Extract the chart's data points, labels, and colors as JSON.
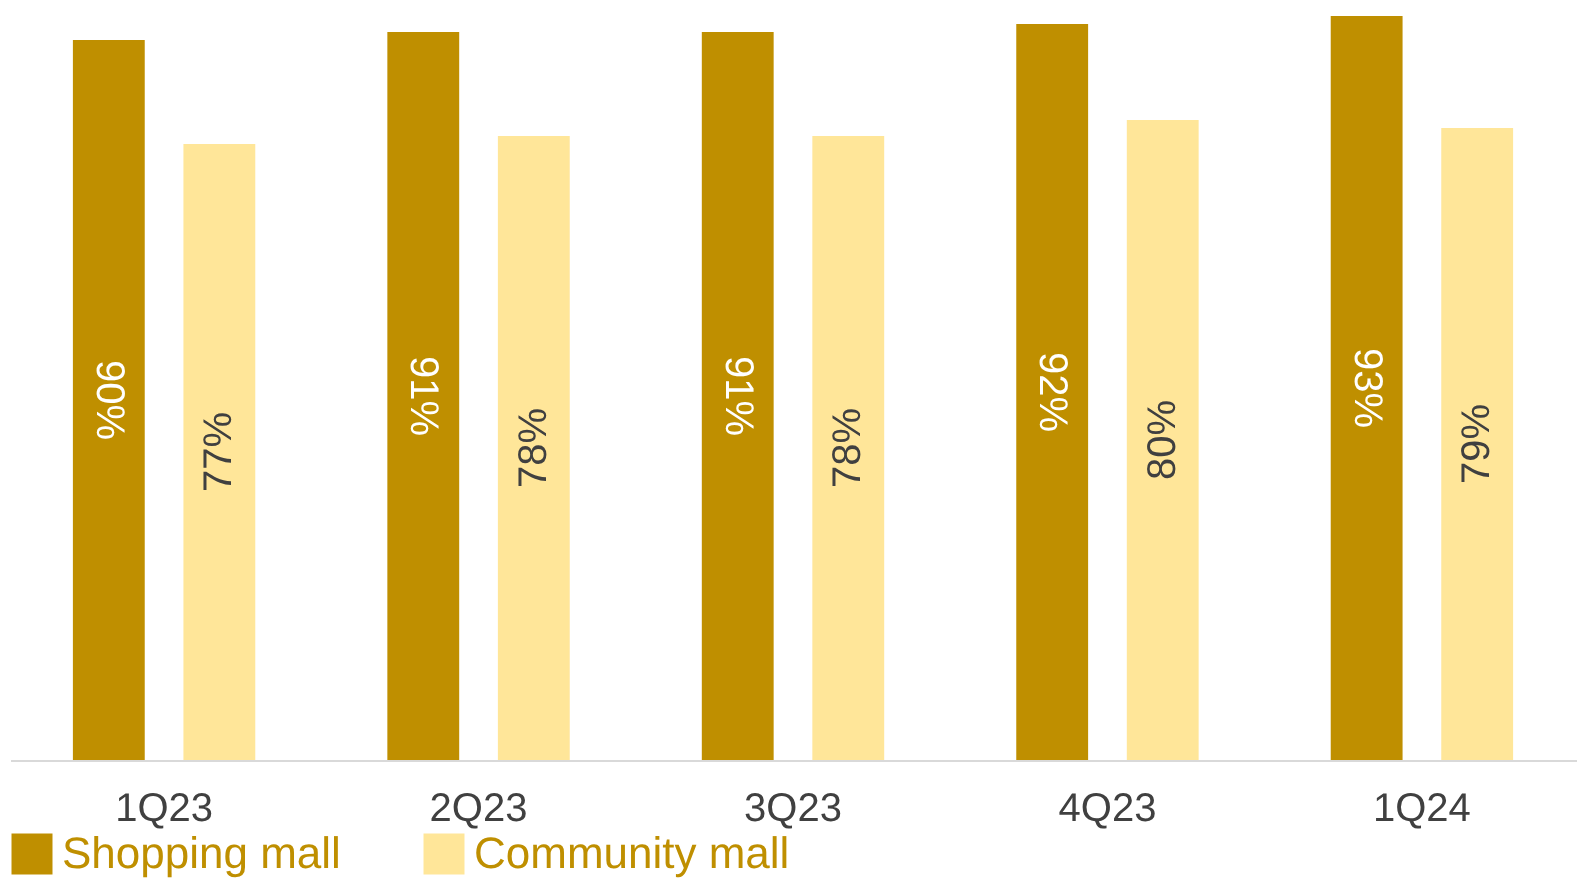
{
  "chart_data": {
    "type": "bar",
    "categories": [
      "1Q23",
      "2Q23",
      "3Q23",
      "4Q23",
      "1Q24"
    ],
    "series": [
      {
        "name": "Shopping mall",
        "color": "#bf8f00",
        "values": [
          90,
          91,
          91,
          92,
          93
        ],
        "value_labels": [
          "90%",
          "91%",
          "91%",
          "92%",
          "93%"
        ]
      },
      {
        "name": "Community mall",
        "color": "#ffe699",
        "values": [
          77,
          78,
          78,
          80,
          79
        ],
        "value_labels": [
          "77%",
          "78%",
          "78%",
          "80%",
          "79%"
        ]
      }
    ],
    "legend": "bottom",
    "grid": false
  }
}
